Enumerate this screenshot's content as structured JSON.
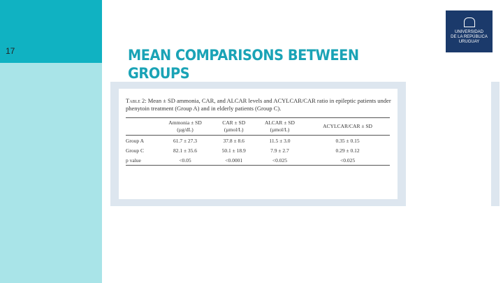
{
  "slide_number": "17",
  "title": "MEAN COMPARISONS BETWEEN GROUPS",
  "logo": {
    "lines": [
      "UNIVERSIDAD",
      "DE LA REPÚBLICA",
      "URUGUAY"
    ]
  },
  "table": {
    "caption_label": "Table 2:",
    "caption": "Mean ± SD ammonia, CAR, and ALCAR levels and ACYLCAR/CAR ratio in epileptic patients under phenytoin treatment (Group A) and in elderly patients (Group C).",
    "headers": [
      {
        "name": "Ammonia ± SD",
        "unit": "(µg/dL)"
      },
      {
        "name": "CAR ± SD",
        "unit": "(µmol/L)"
      },
      {
        "name": "ALCAR ± SD",
        "unit": "(µmol/L)"
      },
      {
        "name": "ACYLCAR/CAR ± SD"
      }
    ],
    "rows": [
      [
        "Group A",
        "61.7 ± 27.3",
        "37.8 ± 8.6",
        "11.5 ± 3.0",
        "0.35 ± 0.15"
      ],
      [
        "Group C",
        "82.1 ± 35.6",
        "50.1 ± 18.9",
        "7.9 ± 2.7",
        "0.29 ± 0.12"
      ],
      [
        "p value",
        "<0.05",
        "<0.0001",
        "<0.025",
        "<0.025"
      ]
    ]
  }
}
